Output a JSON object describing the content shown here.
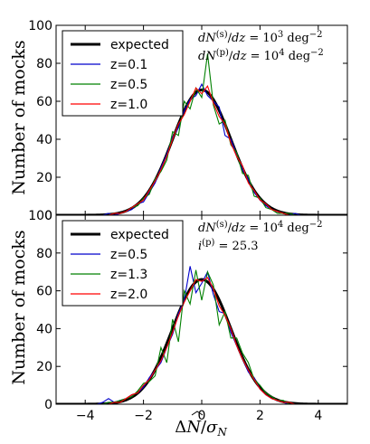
{
  "chart_data": [
    {
      "type": "line",
      "panel": "top",
      "xlim": [
        -5,
        5
      ],
      "ylim": [
        0,
        100
      ],
      "xticks": [
        -4,
        -2,
        0,
        2,
        4
      ],
      "yticks": [
        0,
        20,
        40,
        60,
        80,
        100
      ],
      "ylabel": "Number of mocks",
      "xlabel": "",
      "legend_position": "upper left",
      "annotations": [
        {
          "pre": "dN",
          "sup1": "(s)",
          "mid": "/dz = 10",
          "sup2": "3",
          "post": " deg",
          "sup3": "−2"
        },
        {
          "pre": "dN",
          "sup1": "(p)",
          "mid": "/dz = 10",
          "sup2": "4",
          "post": " deg",
          "sup3": "−2"
        }
      ],
      "expected": {
        "name": "expected",
        "amplitude": 66,
        "mean": 0,
        "sigma": 1,
        "color": "#000000"
      },
      "x": [
        -4.8,
        -4.6,
        -4.4,
        -4.2,
        -4.0,
        -3.8,
        -3.6,
        -3.4,
        -3.2,
        -3.0,
        -2.8,
        -2.6,
        -2.4,
        -2.2,
        -2.0,
        -1.8,
        -1.6,
        -1.4,
        -1.2,
        -1.0,
        -0.8,
        -0.6,
        -0.4,
        -0.2,
        0.0,
        0.2,
        0.4,
        0.6,
        0.8,
        1.0,
        1.2,
        1.4,
        1.6,
        1.8,
        2.0,
        2.2,
        2.4,
        2.6,
        2.8,
        3.0,
        3.2,
        3.4,
        3.6,
        3.8,
        4.0,
        4.2,
        4.4,
        4.6,
        4.8
      ],
      "series": [
        {
          "name": "z=0.1",
          "color": "#0000cc",
          "values": [
            0,
            0,
            0,
            0,
            0,
            0,
            0,
            0,
            1,
            0,
            1,
            2,
            3,
            6,
            7,
            12,
            17,
            25,
            32,
            41,
            46,
            55,
            61,
            63,
            69,
            63,
            60,
            57,
            42,
            40,
            32,
            24,
            19,
            12,
            8,
            5,
            3,
            2,
            1,
            0,
            1,
            0,
            0,
            0,
            0,
            0,
            0,
            0,
            0
          ]
        },
        {
          "name": "z=0.5",
          "color": "#008000",
          "values": [
            0,
            0,
            0,
            0,
            0,
            0,
            0,
            0,
            0,
            1,
            1,
            2,
            4,
            5,
            9,
            11,
            19,
            23,
            29,
            44,
            42,
            60,
            56,
            67,
            62,
            85,
            58,
            48,
            50,
            37,
            33,
            22,
            21,
            10,
            9,
            4,
            3,
            1,
            1,
            1,
            0,
            0,
            0,
            0,
            0,
            0,
            0,
            0,
            0
          ]
        },
        {
          "name": "z=1.0",
          "color": "#ff0000",
          "values": [
            0,
            0,
            0,
            0,
            0,
            0,
            0,
            0,
            0,
            1,
            1,
            2,
            4,
            6,
            8,
            13,
            18,
            24,
            31,
            40,
            48,
            53,
            60,
            67,
            64,
            68,
            59,
            52,
            48,
            38,
            31,
            26,
            17,
            13,
            8,
            6,
            3,
            2,
            1,
            0,
            0,
            0,
            0,
            0,
            0,
            0,
            0,
            0,
            0
          ]
        }
      ]
    },
    {
      "type": "line",
      "panel": "bottom",
      "xlim": [
        -5,
        5
      ],
      "ylim": [
        0,
        100
      ],
      "xticks": [
        -4,
        -2,
        0,
        2,
        4
      ],
      "yticks": [
        0,
        20,
        40,
        60,
        80,
        100
      ],
      "ylabel": "Number of mocks",
      "xlabel": "ΔN̂/σ_N",
      "legend_position": "upper left",
      "annotations": [
        {
          "pre": "dN",
          "sup1": "(s)",
          "mid": "/dz = 10",
          "sup2": "4",
          "post": " deg",
          "sup3": "−2"
        },
        {
          "pre": "i",
          "sup1": "(p)",
          "mid": " = 25.3",
          "sup2": "",
          "post": "",
          "sup3": ""
        }
      ],
      "expected": {
        "name": "expected",
        "amplitude": 66,
        "mean": 0,
        "sigma": 1,
        "color": "#000000"
      },
      "x": [
        -4.8,
        -4.6,
        -4.4,
        -4.2,
        -4.0,
        -3.8,
        -3.6,
        -3.4,
        -3.2,
        -3.0,
        -2.8,
        -2.6,
        -2.4,
        -2.2,
        -2.0,
        -1.8,
        -1.6,
        -1.4,
        -1.2,
        -1.0,
        -0.8,
        -0.6,
        -0.4,
        -0.2,
        0.0,
        0.2,
        0.4,
        0.6,
        0.8,
        1.0,
        1.2,
        1.4,
        1.6,
        1.8,
        2.0,
        2.2,
        2.4,
        2.6,
        2.8,
        3.0,
        3.2,
        3.4,
        3.6,
        3.8,
        4.0,
        4.2,
        4.4,
        4.6,
        4.8
      ],
      "series": [
        {
          "name": "z=0.5",
          "color": "#0000cc",
          "values": [
            0,
            0,
            0,
            0,
            0,
            0,
            0,
            1,
            3,
            1,
            2,
            3,
            5,
            6,
            9,
            14,
            18,
            22,
            30,
            37,
            48,
            55,
            73,
            59,
            64,
            70,
            58,
            49,
            48,
            38,
            31,
            24,
            17,
            14,
            8,
            5,
            3,
            2,
            1,
            0,
            0,
            0,
            0,
            0,
            0,
            0,
            0,
            0,
            0
          ]
        },
        {
          "name": "z=1.3",
          "color": "#008000",
          "values": [
            0,
            0,
            0,
            0,
            0,
            0,
            0,
            0,
            1,
            1,
            2,
            3,
            4,
            7,
            11,
            12,
            15,
            30,
            22,
            45,
            33,
            60,
            53,
            71,
            55,
            70,
            63,
            42,
            49,
            35,
            35,
            27,
            22,
            13,
            10,
            6,
            4,
            2,
            2,
            0,
            0,
            0,
            0,
            0,
            0,
            0,
            0,
            0,
            0
          ]
        },
        {
          "name": "z=2.0",
          "color": "#ff0000",
          "values": [
            0,
            0,
            0,
            0,
            0,
            0,
            0,
            0,
            0,
            1,
            1,
            3,
            5,
            6,
            10,
            13,
            18,
            23,
            30,
            38,
            47,
            54,
            60,
            66,
            65,
            67,
            61,
            52,
            47,
            40,
            31,
            24,
            18,
            13,
            8,
            5,
            3,
            2,
            1,
            1,
            0,
            0,
            0,
            0,
            0,
            0,
            0,
            0,
            0
          ]
        }
      ]
    }
  ]
}
